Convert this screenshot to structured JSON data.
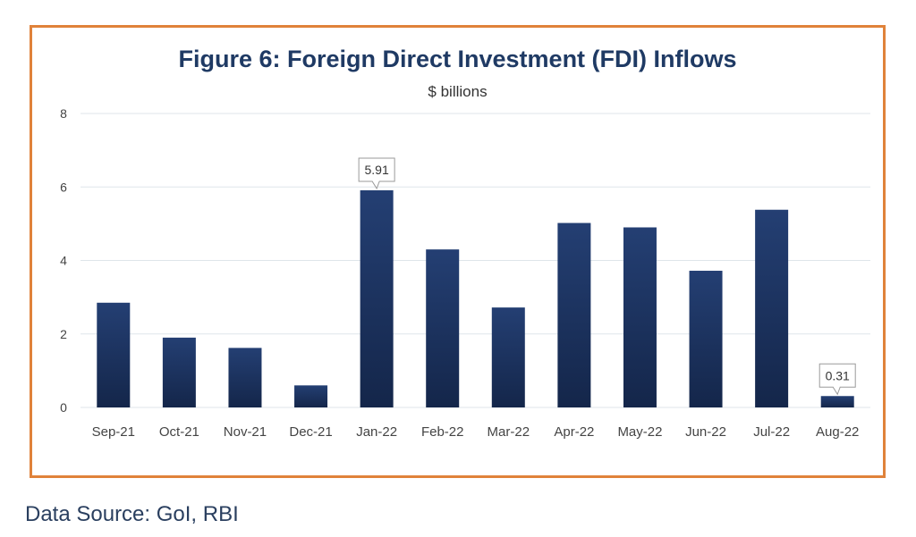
{
  "source": "Data Source: GoI, RBI",
  "colors": {
    "frame": "#e0823a",
    "title": "#1f3a64",
    "bar_top": "#243f73",
    "bar_bottom": "#14264a",
    "grid": "#dfe5ea",
    "tick": "#444444"
  },
  "chart_data": {
    "type": "bar",
    "title": "Figure 6: Foreign Direct Investment (FDI) Inflows",
    "subtitle": "$ billions",
    "categories": [
      "Sep-21",
      "Oct-21",
      "Nov-21",
      "Dec-21",
      "Jan-22",
      "Feb-22",
      "Mar-22",
      "Apr-22",
      "May-22",
      "Jun-22",
      "Jul-22",
      "Aug-22"
    ],
    "values": [
      2.85,
      1.9,
      1.62,
      0.6,
      5.91,
      4.3,
      2.72,
      5.02,
      4.9,
      3.72,
      5.38,
      0.31
    ],
    "ylim": [
      0,
      8
    ],
    "yticks": [
      0,
      2,
      4,
      6,
      8
    ],
    "grid": true,
    "legend": "none",
    "annotations": [
      {
        "category": "Jan-22",
        "text": "5.91"
      },
      {
        "category": "Aug-22",
        "text": "0.31"
      }
    ]
  }
}
